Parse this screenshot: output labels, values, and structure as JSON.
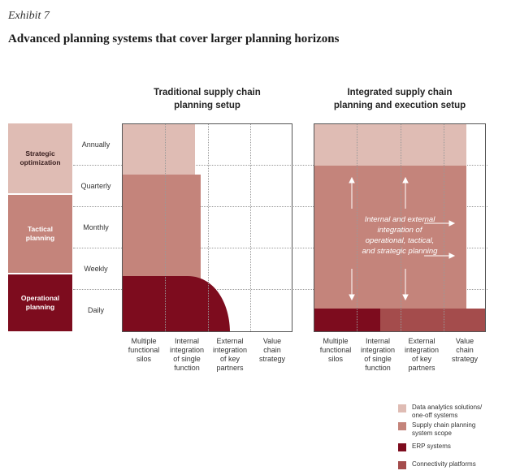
{
  "exhibit_label": "Exhibit 7",
  "headline": "Advanced planning systems that cover larger planning horizons",
  "panels": {
    "left_title_line1": "Traditional supply chain",
    "left_title_line2": "planning setup",
    "right_title_line1": "Integrated supply chain",
    "right_title_line2": "planning and execution setup"
  },
  "bands": [
    {
      "line1": "Strategic",
      "line2": "optimization",
      "color": "#dfbcb4",
      "text_color": "#3a2020"
    },
    {
      "line1": "Tactical",
      "line2": "planning",
      "color": "#c4847b",
      "text_color": "#ffffff"
    },
    {
      "line1": "Operational",
      "line2": "planning",
      "color": "#7d0c1e",
      "text_color": "#ffffff"
    }
  ],
  "frequencies": [
    "Annually",
    "Quarterly",
    "Monthly",
    "Weekly",
    "Daily"
  ],
  "left_columns": [
    [
      "Multiple",
      "functional",
      "silos"
    ],
    [
      "Internal",
      "integration",
      "of single",
      "function"
    ],
    [
      "External",
      "integration",
      "of key",
      "partners"
    ],
    [
      "Value",
      "chain",
      "strategy"
    ]
  ],
  "right_columns": [
    [
      "Multiple",
      "functional",
      "silos"
    ],
    [
      "Internal",
      "integration",
      "of single",
      "function"
    ],
    [
      "External",
      "integration",
      "of key",
      "partners"
    ],
    [
      "Value",
      "chain",
      "strategy"
    ]
  ],
  "center_text": [
    "Internal and external",
    "integration of",
    "operational, tactical,",
    "and strategic planning"
  ],
  "legend": [
    {
      "line1": "Data analytics solutions/",
      "line2": "one-off systems",
      "color": "#dfbcb4"
    },
    {
      "line1": "Supply chain planning",
      "line2": "system scope",
      "color": "#c4847b"
    },
    {
      "line1": "ERP systems",
      "line2": "",
      "color": "#7d0c1e"
    },
    {
      "line1": "Connectivity platforms",
      "line2": "",
      "color": "#a44c4c"
    }
  ],
  "colors": {
    "data_analytics": "#dfbcb4",
    "scp": "#c4847b",
    "erp": "#7d0c1e",
    "connectivity": "#a44c4c"
  }
}
